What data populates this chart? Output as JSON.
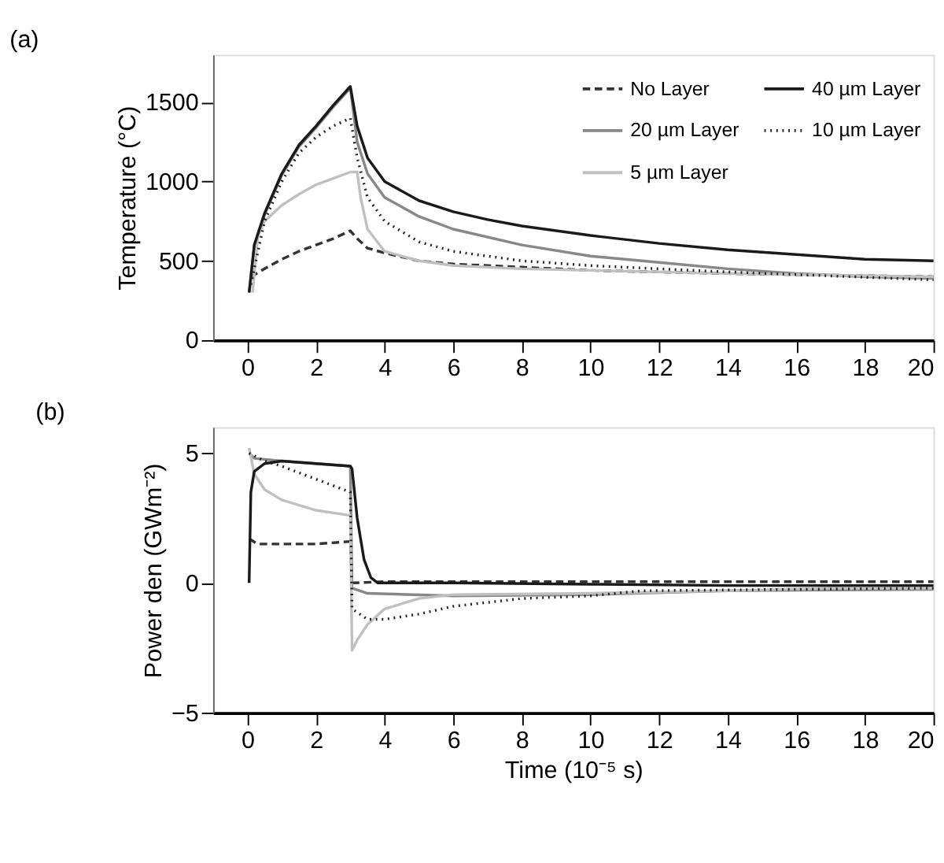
{
  "chart_data": [
    {
      "type": "line",
      "title": "(a)",
      "ylabel": "Temperature (°C)",
      "xlim": [
        -1,
        20
      ],
      "xticks": [
        0,
        2,
        4,
        6,
        8,
        10,
        12,
        14,
        16,
        18,
        20
      ],
      "ylim": [
        0,
        1800
      ],
      "yticks": [
        0,
        500,
        1000,
        1500
      ],
      "grid": false,
      "legend": "top right",
      "marker": "none",
      "series": [
        {
          "name": "No Layer",
          "color": "#333333",
          "line_style": "dashed",
          "x": [
            0.1,
            0.5,
            1,
            1.5,
            2,
            2.5,
            3,
            3.2,
            3.5,
            4,
            5,
            6,
            8,
            10,
            14,
            20
          ],
          "values": [
            400,
            450,
            510,
            560,
            600,
            640,
            690,
            640,
            580,
            550,
            500,
            480,
            460,
            440,
            420,
            400
          ]
        },
        {
          "name": "20 µm Layer",
          "color": "#888888",
          "line_style": "solid",
          "x": [
            0.05,
            0.2,
            0.5,
            1,
            1.5,
            2,
            2.5,
            3,
            3.2,
            3.5,
            4,
            5,
            6,
            8,
            10,
            12,
            14,
            16,
            18,
            20
          ],
          "values": [
            300,
            590,
            790,
            1040,
            1220,
            1340,
            1470,
            1590,
            1250,
            1050,
            900,
            780,
            700,
            600,
            530,
            490,
            450,
            420,
            400,
            390
          ]
        },
        {
          "name": "5 µm Layer",
          "color": "#c0c0c0",
          "line_style": "solid",
          "x": [
            0.15,
            0.3,
            0.5,
            1,
            1.5,
            2,
            2.5,
            3,
            3.2,
            3.3,
            3.5,
            4,
            5,
            6,
            8,
            10,
            14,
            20
          ],
          "values": [
            300,
            650,
            750,
            850,
            920,
            980,
            1020,
            1060,
            1060,
            900,
            700,
            560,
            500,
            470,
            450,
            440,
            420,
            400
          ]
        },
        {
          "name": "40 µm Layer",
          "color": "#1a1a1a",
          "line_style": "solid",
          "x": [
            0.05,
            0.2,
            0.5,
            1,
            1.5,
            2,
            2.5,
            3,
            3.2,
            3.5,
            4,
            5,
            6,
            7,
            8,
            10,
            12,
            14,
            16,
            18,
            20
          ],
          "values": [
            300,
            600,
            800,
            1050,
            1230,
            1350,
            1480,
            1600,
            1350,
            1150,
            1000,
            880,
            810,
            760,
            720,
            660,
            610,
            570,
            540,
            510,
            500
          ]
        },
        {
          "name": "10 µm Layer",
          "color": "#222222",
          "line_style": "dotted",
          "x": [
            0.1,
            0.5,
            1,
            1.5,
            2,
            2.5,
            3,
            3.2,
            3.5,
            4,
            5,
            6,
            8,
            10,
            14,
            20
          ],
          "values": [
            350,
            750,
            1000,
            1180,
            1280,
            1350,
            1400,
            1150,
            900,
            750,
            620,
            560,
            500,
            470,
            430,
            380
          ]
        }
      ]
    },
    {
      "type": "line",
      "title": "(b)",
      "xlabel": "Time (10⁻⁵ s)",
      "ylabel": "Power den (GWm⁻²)",
      "xlim": [
        -1,
        20
      ],
      "xticks": [
        0,
        2,
        4,
        6,
        8,
        10,
        12,
        14,
        16,
        18,
        20
      ],
      "ylim": [
        -5,
        6
      ],
      "yticks": [
        -5,
        0,
        5
      ],
      "grid": false,
      "legend": "top right",
      "marker": "none",
      "series": [
        {
          "name": "No Layer",
          "color": "#333333",
          "line_style": "dashed",
          "x": [
            0.05,
            0.3,
            2,
            3,
            3.05,
            4,
            20
          ],
          "values": [
            1.7,
            1.5,
            1.5,
            1.6,
            0,
            0.05,
            0.05
          ]
        },
        {
          "name": "20 µm Layer",
          "color": "#888888",
          "line_style": "solid",
          "x": [
            0.05,
            0.2,
            1,
            2,
            3,
            3.05,
            3.5,
            6,
            10,
            14,
            20
          ],
          "values": [
            5.0,
            4.8,
            4.7,
            4.6,
            4.5,
            -0.2,
            -0.4,
            -0.5,
            -0.45,
            -0.3,
            -0.25
          ]
        },
        {
          "name": "5 µm Layer",
          "color": "#c0c0c0",
          "line_style": "solid",
          "x": [
            0.05,
            0.2,
            0.5,
            1,
            2,
            3,
            3.05,
            3.2,
            3.5,
            4,
            5,
            6,
            10,
            14,
            17,
            20
          ],
          "values": [
            5.2,
            4.2,
            3.6,
            3.2,
            2.8,
            2.6,
            -2.6,
            -2.2,
            -1.6,
            -1.0,
            -0.6,
            -0.45,
            -0.4,
            -0.3,
            -0.2,
            -0.2
          ]
        },
        {
          "name": "40 µm Layer",
          "color": "#1a1a1a",
          "line_style": "solid",
          "x": [
            0.05,
            0.1,
            0.2,
            0.5,
            1,
            2,
            3,
            3.05,
            3.2,
            3.4,
            3.6,
            3.8,
            6,
            10,
            14,
            20
          ],
          "values": [
            0,
            3.5,
            4.3,
            4.6,
            4.7,
            4.6,
            4.5,
            4.4,
            2.5,
            0.9,
            0.2,
            0,
            0,
            -0.05,
            -0.1,
            -0.1
          ]
        },
        {
          "name": "10 µm Layer",
          "color": "#222222",
          "line_style": "dotted",
          "x": [
            0.05,
            0.5,
            1,
            2,
            3,
            3.05,
            3.5,
            4,
            5,
            6,
            8,
            10,
            11.5,
            20
          ],
          "values": [
            5.0,
            4.7,
            4.5,
            4.0,
            3.5,
            -1.0,
            -1.4,
            -1.4,
            -1.2,
            -0.9,
            -0.6,
            -0.5,
            -0.3,
            -0.2
          ]
        }
      ]
    }
  ]
}
